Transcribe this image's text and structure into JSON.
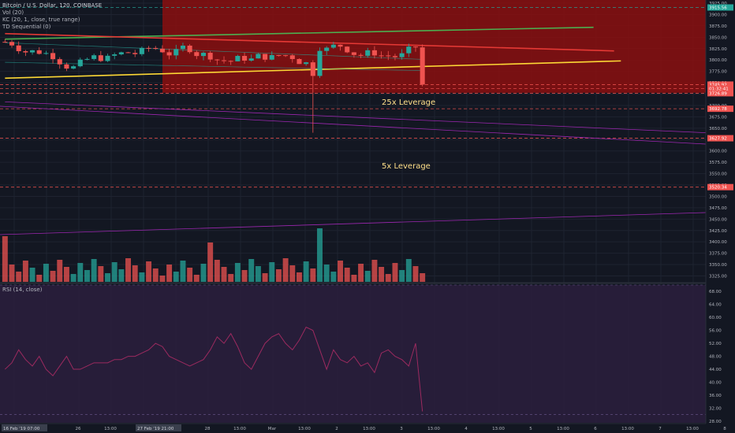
{
  "header": {
    "symbol_title": "Bitcoin / U.S. Dollar, 120, COINBASE",
    "indicators": [
      "Vol (20)",
      "KC (20, 1, close, true range)",
      "TD Sequential (0)"
    ],
    "rsi_label": "RSI (14, close)"
  },
  "annotations": {
    "leverage_25x": "25x Leverage",
    "leverage_5x": "5x Leverage"
  },
  "colors": {
    "background": "#131722",
    "up": "#26a69a",
    "down": "#ef5350",
    "shade": "#8b0f0f",
    "rsi_line": "#9c2a5f",
    "rsi_band": "#2a1e3c"
  },
  "price_levels": [
    {
      "label": "3745.92",
      "value": 3745.92,
      "color": "#ef5350"
    },
    {
      "label": "01:32:41",
      "value": 3737,
      "color": "#ef5350"
    },
    {
      "label": "3726.89",
      "value": 3726.89,
      "color": "#ef5350"
    },
    {
      "label": "3692.78",
      "value": 3692.78,
      "color": "#ef5350"
    },
    {
      "label": "3627.92",
      "value": 3627.92,
      "color": "#ef5350"
    },
    {
      "label": "3520.34",
      "value": 3520.34,
      "color": "#ef5350"
    },
    {
      "label": "3915.56",
      "value": 3915.56,
      "color": "#26a69a"
    }
  ],
  "chart_data": [
    {
      "type": "candlestick",
      "title": "Bitcoin / U.S. Dollar, 120, COINBASE",
      "y_ticks": [
        "3925.00",
        "3900.00",
        "3875.00",
        "3850.00",
        "3825.00",
        "3800.00",
        "3775.00",
        "3750.00",
        "3725.00",
        "3700.00",
        "3675.00",
        "3650.00",
        "3625.00",
        "3600.00",
        "3575.00",
        "3550.00",
        "3525.00",
        "3500.00",
        "3475.00",
        "3450.00",
        "3425.00",
        "3400.00",
        "3375.00",
        "3350.00",
        "3325.00"
      ],
      "ylim": [
        3312,
        3932
      ],
      "x_ticks": [
        "26 Feb '19",
        "26",
        "13:00",
        "27",
        "13:00",
        "28",
        "13:00",
        "Mar",
        "13:00",
        "2",
        "13:00",
        "3",
        "13:00",
        "4",
        "13:00",
        "5",
        "13:00",
        "6",
        "13:00",
        "7",
        "13:00",
        "8"
      ],
      "x_tick_labels_highlighted": [
        "16 Feb '19  07:00",
        "27 Feb '19  21:00"
      ],
      "candle_count": 62,
      "approx_range": {
        "high": 3890,
        "low": 3640,
        "last": 3745.92
      },
      "trend_lines": [
        {
          "name": "upper channel",
          "color": "#4caf50",
          "from": [
            0,
            3846
          ],
          "to": [
            86,
            3872
          ]
        },
        {
          "name": "resistance",
          "color": "#e53935",
          "from": [
            0,
            3858
          ],
          "to": [
            89,
            3820
          ]
        },
        {
          "name": "support",
          "color": "#fdd835",
          "from": [
            0,
            3760
          ],
          "to": [
            90,
            3798
          ]
        },
        {
          "name": "lower trend",
          "color": "#9c27b0",
          "from": [
            0,
            3708
          ],
          "to": [
            122,
            3627
          ]
        }
      ],
      "liquidation_zones": [
        {
          "label": "25x Leverage",
          "range": [
            3728,
            3932
          ]
        },
        {
          "label": "5x Leverage",
          "price": 3520.34
        }
      ]
    },
    {
      "type": "bar",
      "title": "Vol (20)",
      "description": "volume bars colored by candle direction",
      "bar_count": 62
    },
    {
      "type": "line",
      "title": "RSI (14, close)",
      "y_ticks": [
        "68.00",
        "64.00",
        "60.00",
        "56.00",
        "52.00",
        "48.00",
        "44.00",
        "40.00",
        "36.00",
        "32.00",
        "28.00"
      ],
      "ylim": [
        27.5,
        70
      ],
      "values": [
        44,
        46,
        50,
        47,
        45,
        48,
        44,
        42,
        45,
        48,
        44,
        44,
        45,
        46,
        46,
        46,
        47,
        47,
        48,
        48,
        49,
        50,
        52,
        51,
        48,
        47,
        46,
        45,
        46,
        47,
        50,
        54,
        52,
        55,
        51,
        46,
        44,
        48,
        52,
        54,
        55,
        52,
        50,
        53,
        57,
        56,
        50,
        44,
        50,
        47,
        46,
        48,
        45,
        46,
        43,
        49,
        50,
        48,
        47,
        45,
        52,
        31
      ]
    }
  ]
}
